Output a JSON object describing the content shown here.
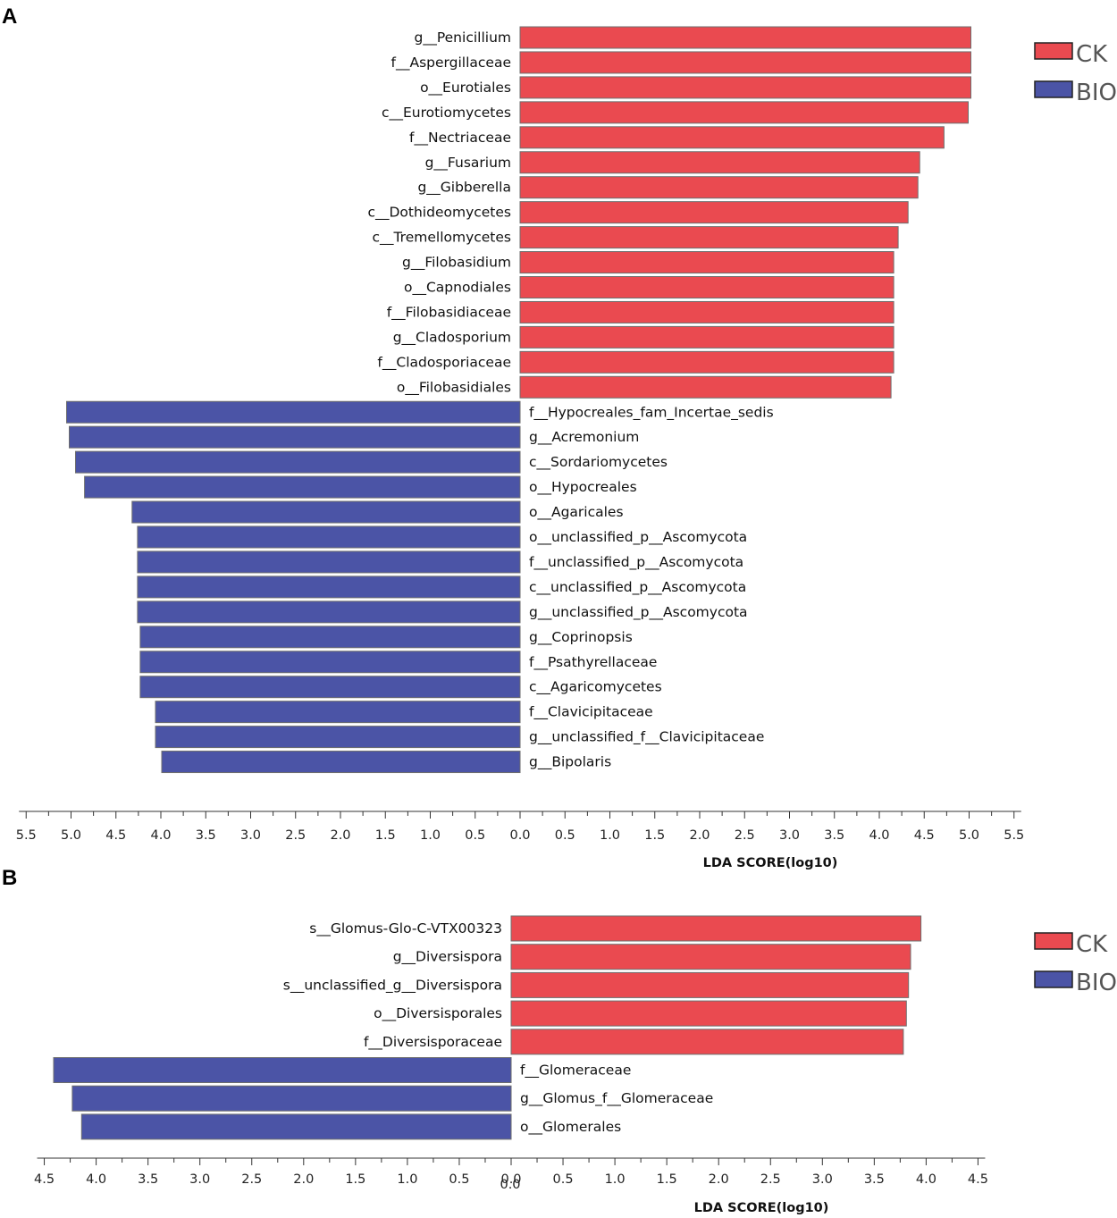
{
  "chart_data": [
    {
      "panel": "A",
      "type": "bar",
      "orientation": "horizontal",
      "xlabel": "LDA SCORE(log10)",
      "xlim": [
        -5.5,
        5.5
      ],
      "ticks": [
        "5.5",
        "5.0",
        "4.5",
        "4.0",
        "3.5",
        "3.0",
        "2.5",
        "2.0",
        "1.5",
        "1.0",
        "0.5",
        "0.0",
        "0.5",
        "1.0",
        "1.5",
        "2.0",
        "2.5",
        "3.0",
        "3.5",
        "4.0",
        "4.5",
        "5.0",
        "5.5"
      ],
      "legend": [
        {
          "name": "CK",
          "color": "#ea4a50"
        },
        {
          "name": "BIO",
          "color": "#4b54a6"
        }
      ],
      "series": [
        {
          "name": "CK",
          "color": "#ea4a50",
          "categories": [
            "g__Penicillium",
            "f__Aspergillaceae",
            "o__Eurotiales",
            "c__Eurotiomycetes",
            "f__Nectriaceae",
            "g__Fusarium",
            "g__Gibberella",
            "c__Dothideomycetes",
            "c__Tremellomycetes",
            "g__Filobasidium",
            "o__Capnodiales",
            "f__Filobasidiaceae",
            "g__Cladosporium",
            "f__Cladosporiaceae",
            "o__Filobasidiales"
          ],
          "values": [
            5.02,
            5.02,
            5.02,
            4.99,
            4.72,
            4.45,
            4.43,
            4.32,
            4.21,
            4.16,
            4.16,
            4.16,
            4.16,
            4.16,
            4.13
          ]
        },
        {
          "name": "BIO",
          "color": "#4b54a6",
          "categories": [
            "f__Hypocreales_fam_Incertae_sedis",
            "g__Acremonium",
            "c__Sordariomycetes",
            "o__Hypocreales",
            "o__Agaricales",
            "o__unclassified_p__Ascomycota",
            "f__unclassified_p__Ascomycota",
            "c__unclassified_p__Ascomycota",
            "g__unclassified_p__Ascomycota",
            "g__Coprinopsis",
            "f__Psathyrellaceae",
            "c__Agaricomycetes",
            "f__Clavicipitaceae",
            "g__unclassified_f__Clavicipitaceae",
            "g__Bipolaris"
          ],
          "values": [
            5.05,
            5.02,
            4.95,
            4.85,
            4.32,
            4.26,
            4.26,
            4.26,
            4.26,
            4.23,
            4.23,
            4.23,
            4.06,
            4.06,
            3.99
          ]
        }
      ]
    },
    {
      "panel": "B",
      "type": "bar",
      "orientation": "horizontal",
      "xlabel": "LDA SCORE(log10)",
      "xlim": [
        -4.5,
        4.5
      ],
      "ticks": [
        "4.5",
        "4.0",
        "3.5",
        "3.0",
        "2.5",
        "2.0",
        "1.5",
        "1.0",
        "0.5",
        "0.0",
        "0.5",
        "1.0",
        "1.5",
        "2.0",
        "2.5",
        "3.0",
        "3.5",
        "4.0",
        "4.5"
      ],
      "zero_extra_label": "0.0",
      "legend": [
        {
          "name": "CK",
          "color": "#ea4a50"
        },
        {
          "name": "BIO",
          "color": "#4b54a6"
        }
      ],
      "series": [
        {
          "name": "CK",
          "color": "#ea4a50",
          "categories": [
            "s__Glomus-Glo-C-VTX00323",
            "g__Diversispora",
            "s__unclassified_g__Diversispora",
            "o__Diversisporales",
            "f__Diversisporaceae"
          ],
          "values": [
            3.95,
            3.85,
            3.83,
            3.81,
            3.78
          ]
        },
        {
          "name": "BIO",
          "color": "#4b54a6",
          "categories": [
            "f__Glomeraceae",
            "g__Glomus_f__Glomeraceae",
            "o__Glomerales"
          ],
          "values": [
            4.41,
            4.23,
            4.14
          ]
        }
      ]
    }
  ]
}
